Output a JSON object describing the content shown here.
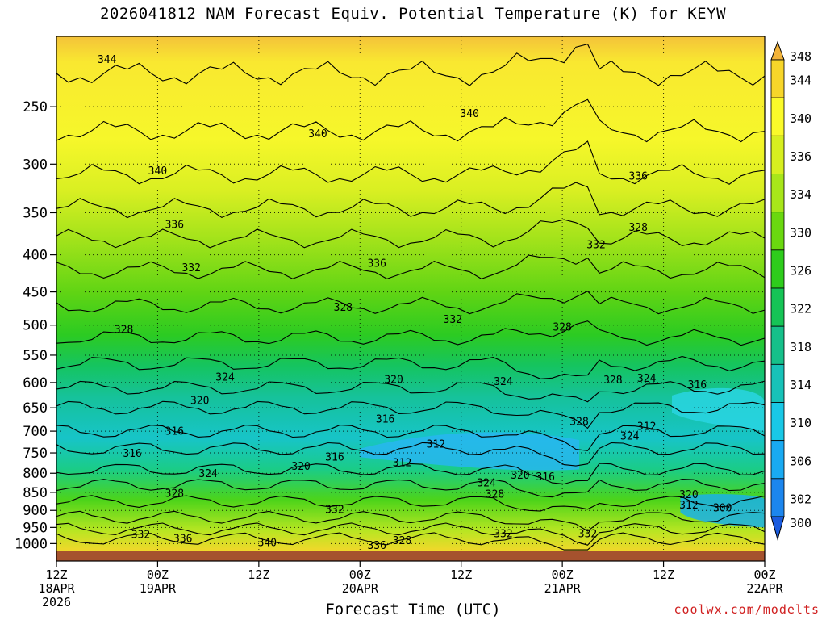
{
  "title": "2026041812 NAM Forecast Equiv. Potential Temperature (K) for KEYW",
  "credit": "coolwx.com/modelts",
  "chart_data": {
    "type": "heatmap",
    "title": "2026041812 NAM Forecast Equiv. Potential Temperature (K) for KEYW",
    "xlabel": "Forecast Time (UTC)",
    "ylabel": "",
    "x_range_hours": [
      0,
      84
    ],
    "y_range_hpa": [
      1025,
      200
    ],
    "y_ticks": [
      250,
      300,
      350,
      400,
      450,
      500,
      550,
      600,
      650,
      700,
      750,
      800,
      850,
      900,
      950,
      1000
    ],
    "x_ticks": [
      {
        "hour": 0,
        "lines": [
          "12Z",
          "18APR",
          "2026"
        ]
      },
      {
        "hour": 12,
        "lines": [
          "00Z",
          "19APR"
        ]
      },
      {
        "hour": 24,
        "lines": [
          "12Z"
        ]
      },
      {
        "hour": 36,
        "lines": [
          "00Z",
          "20APR"
        ]
      },
      {
        "hour": 48,
        "lines": [
          "12Z"
        ]
      },
      {
        "hour": 60,
        "lines": [
          "00Z",
          "21APR"
        ]
      },
      {
        "hour": 72,
        "lines": [
          "12Z"
        ]
      },
      {
        "hour": 84,
        "lines": [
          "00Z",
          "22APR"
        ]
      }
    ],
    "colorbar_levels": [
      348,
      344,
      340,
      336,
      334,
      330,
      326,
      322,
      318,
      314,
      310,
      306,
      302,
      300
    ],
    "colorbar_colors": [
      "#f2b33a",
      "#f7d62a",
      "#fafa2a",
      "#d7ef20",
      "#a8e61a",
      "#6ad80f",
      "#2ecc1c",
      "#16c456",
      "#16c08a",
      "#17c2b8",
      "#19c8e6",
      "#19aaf2",
      "#1c86ee",
      "#1a5bde"
    ],
    "grid": true,
    "contour_labels": [
      {
        "text": "344",
        "hour": 6,
        "p": 215
      },
      {
        "text": "340",
        "hour": 49,
        "p": 255
      },
      {
        "text": "340",
        "hour": 31,
        "p": 272
      },
      {
        "text": "340",
        "hour": 12,
        "p": 306
      },
      {
        "text": "336",
        "hour": 69,
        "p": 311
      },
      {
        "text": "336",
        "hour": 14,
        "p": 363
      },
      {
        "text": "328",
        "hour": 69,
        "p": 366
      },
      {
        "text": "332",
        "hour": 64,
        "p": 387
      },
      {
        "text": "336",
        "hour": 38,
        "p": 410
      },
      {
        "text": "332",
        "hour": 16,
        "p": 416
      },
      {
        "text": "328",
        "hour": 34,
        "p": 472
      },
      {
        "text": "332",
        "hour": 47,
        "p": 490
      },
      {
        "text": "328",
        "hour": 8,
        "p": 506
      },
      {
        "text": "328",
        "hour": 60,
        "p": 502
      },
      {
        "text": "324",
        "hour": 20,
        "p": 589
      },
      {
        "text": "320",
        "hour": 40,
        "p": 593
      },
      {
        "text": "324",
        "hour": 53,
        "p": 597
      },
      {
        "text": "328",
        "hour": 66,
        "p": 594
      },
      {
        "text": "324",
        "hour": 70,
        "p": 591
      },
      {
        "text": "316",
        "hour": 76,
        "p": 603
      },
      {
        "text": "320",
        "hour": 17,
        "p": 634
      },
      {
        "text": "316",
        "hour": 39,
        "p": 673
      },
      {
        "text": "328",
        "hour": 62,
        "p": 678
      },
      {
        "text": "312",
        "hour": 70,
        "p": 688
      },
      {
        "text": "316",
        "hour": 14,
        "p": 699
      },
      {
        "text": "324",
        "hour": 68,
        "p": 710
      },
      {
        "text": "312",
        "hour": 45,
        "p": 728
      },
      {
        "text": "316",
        "hour": 9,
        "p": 750
      },
      {
        "text": "316",
        "hour": 33,
        "p": 759
      },
      {
        "text": "312",
        "hour": 41,
        "p": 772
      },
      {
        "text": "320",
        "hour": 29,
        "p": 781
      },
      {
        "text": "324",
        "hour": 18,
        "p": 800
      },
      {
        "text": "320",
        "hour": 55,
        "p": 804
      },
      {
        "text": "316",
        "hour": 58,
        "p": 808
      },
      {
        "text": "324",
        "hour": 51,
        "p": 823
      },
      {
        "text": "328",
        "hour": 14,
        "p": 851
      },
      {
        "text": "328",
        "hour": 52,
        "p": 854
      },
      {
        "text": "320",
        "hour": 75,
        "p": 855
      },
      {
        "text": "312",
        "hour": 75,
        "p": 884
      },
      {
        "text": "300",
        "hour": 79,
        "p": 891
      },
      {
        "text": "332",
        "hour": 33,
        "p": 896
      },
      {
        "text": "332",
        "hour": 10,
        "p": 970
      },
      {
        "text": "332",
        "hour": 53,
        "p": 967
      },
      {
        "text": "332",
        "hour": 63,
        "p": 968
      },
      {
        "text": "336",
        "hour": 15,
        "p": 983
      },
      {
        "text": "340",
        "hour": 25,
        "p": 995
      },
      {
        "text": "328",
        "hour": 41,
        "p": 989
      },
      {
        "text": "336",
        "hour": 38,
        "p": 1004
      }
    ]
  }
}
